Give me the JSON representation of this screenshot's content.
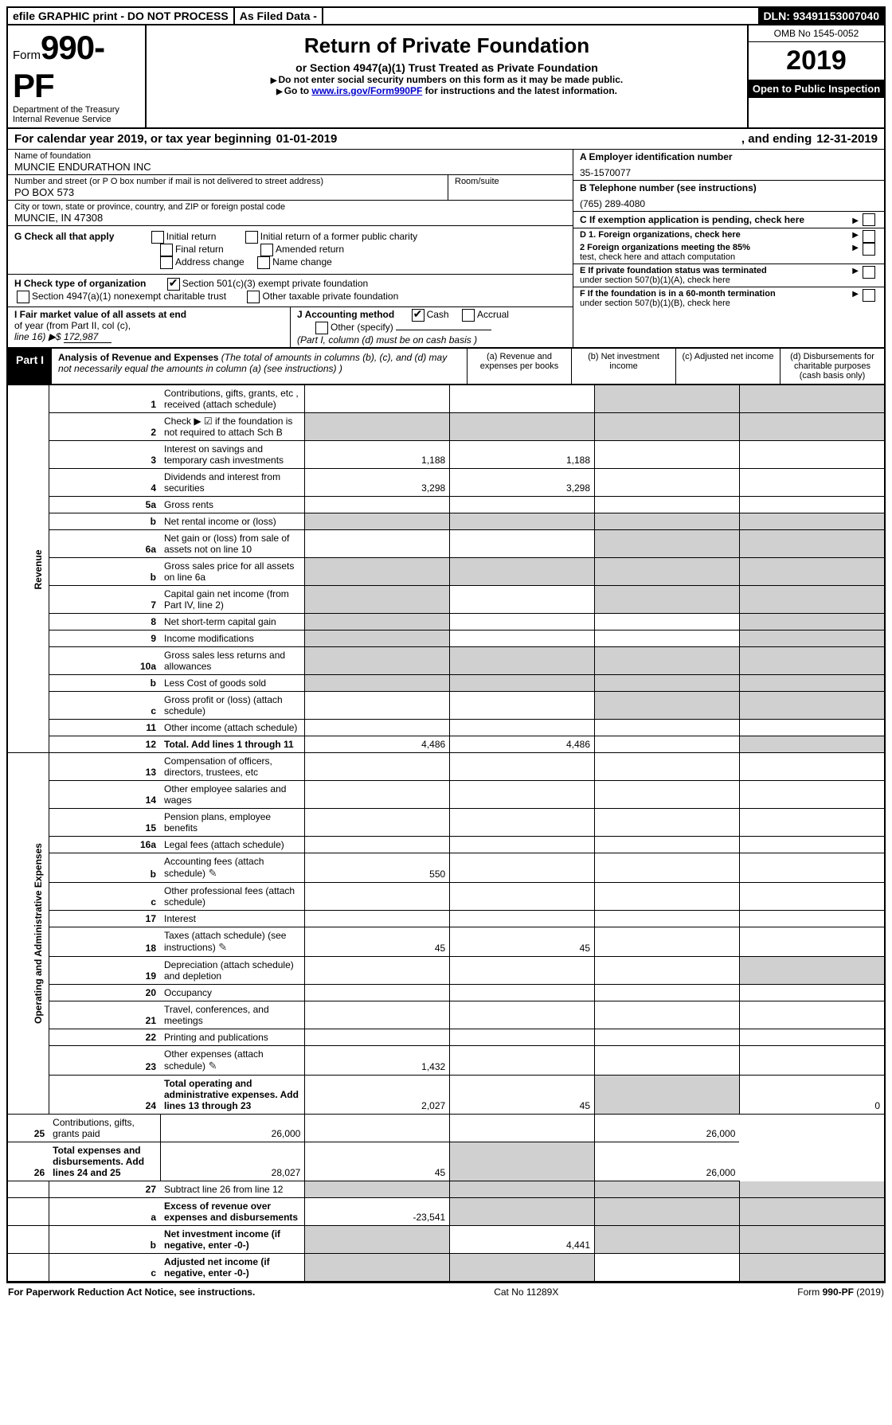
{
  "topbar": {
    "efile": "efile GRAPHIC print - DO NOT PROCESS",
    "asfiled": "As Filed Data -",
    "dln_label": "DLN:",
    "dln": "93491153007040"
  },
  "header": {
    "form_prefix": "Form",
    "form_number": "990-PF",
    "dept": "Department of the Treasury",
    "irs": "Internal Revenue Service",
    "title": "Return of Private Foundation",
    "subtitle": "or Section 4947(a)(1) Trust Treated as Private Foundation",
    "note1": "Do not enter social security numbers on this form as it may be made public.",
    "note2_a": "Go to ",
    "note2_link": "www.irs.gov/Form990PF",
    "note2_b": " for instructions and the latest information.",
    "omb": "OMB No 1545-0052",
    "year": "2019",
    "open": "Open to Public Inspection"
  },
  "cal": {
    "pre": "For calendar year 2019, or tax year beginning ",
    "begin": "01-01-2019",
    "mid": ", and ending ",
    "end": "12-31-2019"
  },
  "ident": {
    "name_label": "Name of foundation",
    "name": "MUNCIE ENDURATHON INC",
    "addr_label": "Number and street (or P O  box number if mail is not delivered to street address)",
    "addr": "PO BOX 573",
    "room_label": "Room/suite",
    "city_label": "City or town, state or province, country, and ZIP or foreign postal code",
    "city": "MUNCIE, IN  47308",
    "A_label": "A Employer identification number",
    "A_val": "35-1570077",
    "B_label": "B Telephone number (see instructions)",
    "B_val": "(765) 289-4080",
    "C_label": "C If exemption application is pending, check here"
  },
  "G": {
    "label": "G Check all that apply",
    "opt1": "Initial return",
    "opt2": "Final return",
    "opt3": "Address change",
    "opt4": "Initial return of a former public charity",
    "opt5": "Amended return",
    "opt6": "Name change"
  },
  "H": {
    "label": "H Check type of organization",
    "opt1": "Section 501(c)(3) exempt private foundation",
    "opt2": "Section 4947(a)(1) nonexempt charitable trust",
    "opt3": "Other taxable private foundation"
  },
  "I": {
    "label1": "I Fair market value of all assets at end",
    "label2": "of year (from Part II, col  (c),",
    "label3": "line 16) ▶$ ",
    "val": "172,987"
  },
  "J": {
    "label": "J Accounting method",
    "cash": "Cash",
    "accrual": "Accrual",
    "other": "Other (specify)",
    "note": "(Part I, column (d) must be on cash basis )"
  },
  "D": {
    "d1": "D 1. Foreign organizations, check here",
    "d2a": "2 Foreign organizations meeting the 85%",
    "d2b": "test, check here and attach computation"
  },
  "E": {
    "a": "E  If private foundation status was terminated",
    "b": "under section 507(b)(1)(A), check here"
  },
  "F": {
    "a": "F  If the foundation is in a 60-month termination",
    "b": "under section 507(b)(1)(B), check here"
  },
  "part1": {
    "tag": "Part I",
    "title": "Analysis of Revenue and Expenses",
    "paren": " (The total of amounts in columns (b), (c), and (d) may not necessarily equal the amounts in column (a) (see instructions) )",
    "col_a": "(a)  Revenue and expenses per books",
    "col_b": "(b) Net investment income",
    "col_c": "(c) Adjusted net income",
    "col_d": "(d) Disbursements for charitable purposes (cash basis only)"
  },
  "vlabels": {
    "rev": "Revenue",
    "exp": "Operating and Administrative Expenses"
  },
  "rows": {
    "1": {
      "n": "1",
      "d": "Contributions, gifts, grants, etc , received (attach schedule)"
    },
    "2": {
      "n": "2",
      "d": "Check ▶ ☑ if the foundation is not required to attach Sch  B"
    },
    "3": {
      "n": "3",
      "d": "Interest on savings and temporary cash investments",
      "a": "1,188",
      "b": "1,188"
    },
    "4": {
      "n": "4",
      "d": "Dividends and interest from securities",
      "a": "3,298",
      "b": "3,298"
    },
    "5a": {
      "n": "5a",
      "d": "Gross rents"
    },
    "5b": {
      "n": "b",
      "d": "Net rental income or (loss)"
    },
    "6a": {
      "n": "6a",
      "d": "Net gain or (loss) from sale of assets not on line 10"
    },
    "6b": {
      "n": "b",
      "d": "Gross sales price for all assets on line 6a"
    },
    "7": {
      "n": "7",
      "d": "Capital gain net income (from Part IV, line 2)"
    },
    "8": {
      "n": "8",
      "d": "Net short-term capital gain"
    },
    "9": {
      "n": "9",
      "d": "Income modifications"
    },
    "10a": {
      "n": "10a",
      "d": "Gross sales less returns and allowances"
    },
    "10b": {
      "n": "b",
      "d": "Less  Cost of goods sold"
    },
    "10c": {
      "n": "c",
      "d": "Gross profit or (loss) (attach schedule)"
    },
    "11": {
      "n": "11",
      "d": "Other income (attach schedule)"
    },
    "12": {
      "n": "12",
      "d": "Total. Add lines 1 through 11",
      "a": "4,486",
      "b": "4,486",
      "bold": true
    },
    "13": {
      "n": "13",
      "d": "Compensation of officers, directors, trustees, etc"
    },
    "14": {
      "n": "14",
      "d": "Other employee salaries and wages"
    },
    "15": {
      "n": "15",
      "d": "Pension plans, employee benefits"
    },
    "16a": {
      "n": "16a",
      "d": "Legal fees (attach schedule)"
    },
    "16b": {
      "n": "b",
      "d": "Accounting fees (attach schedule)",
      "a": "550",
      "att": true
    },
    "16c": {
      "n": "c",
      "d": "Other professional fees (attach schedule)"
    },
    "17": {
      "n": "17",
      "d": "Interest"
    },
    "18": {
      "n": "18",
      "d": "Taxes (attach schedule) (see instructions)",
      "a": "45",
      "b": "45",
      "att": true
    },
    "19": {
      "n": "19",
      "d": "Depreciation (attach schedule) and depletion"
    },
    "20": {
      "n": "20",
      "d": "Occupancy"
    },
    "21": {
      "n": "21",
      "d": "Travel, conferences, and meetings"
    },
    "22": {
      "n": "22",
      "d": "Printing and publications"
    },
    "23": {
      "n": "23",
      "d": "Other expenses (attach schedule)",
      "a": "1,432",
      "att": true
    },
    "24": {
      "n": "24",
      "d": "Total operating and administrative expenses. Add lines 13 through 23",
      "a": "2,027",
      "b": "45",
      "dd": "0",
      "bold": true
    },
    "25": {
      "n": "25",
      "d": "Contributions, gifts, grants paid",
      "a": "26,000",
      "dd": "26,000"
    },
    "26": {
      "n": "26",
      "d": "Total expenses and disbursements. Add lines 24 and 25",
      "a": "28,027",
      "b": "45",
      "dd": "26,000",
      "bold": true
    },
    "27": {
      "n": "27",
      "d": "Subtract line 26 from line 12"
    },
    "27a": {
      "n": "a",
      "d": "Excess of revenue over expenses and disbursements",
      "a": "-23,541",
      "bold": true
    },
    "27b": {
      "n": "b",
      "d": "Net investment income (if negative, enter -0-)",
      "b": "4,441",
      "bold": true
    },
    "27c": {
      "n": "c",
      "d": "Adjusted net income (if negative, enter -0-)",
      "bold": true
    }
  },
  "footer": {
    "left": "For Paperwork Reduction Act Notice, see instructions.",
    "mid": "Cat  No  11289X",
    "right": "Form 990-PF (2019)"
  },
  "colors": {
    "grey": "#d0d0d0",
    "link": "#0000cc"
  }
}
